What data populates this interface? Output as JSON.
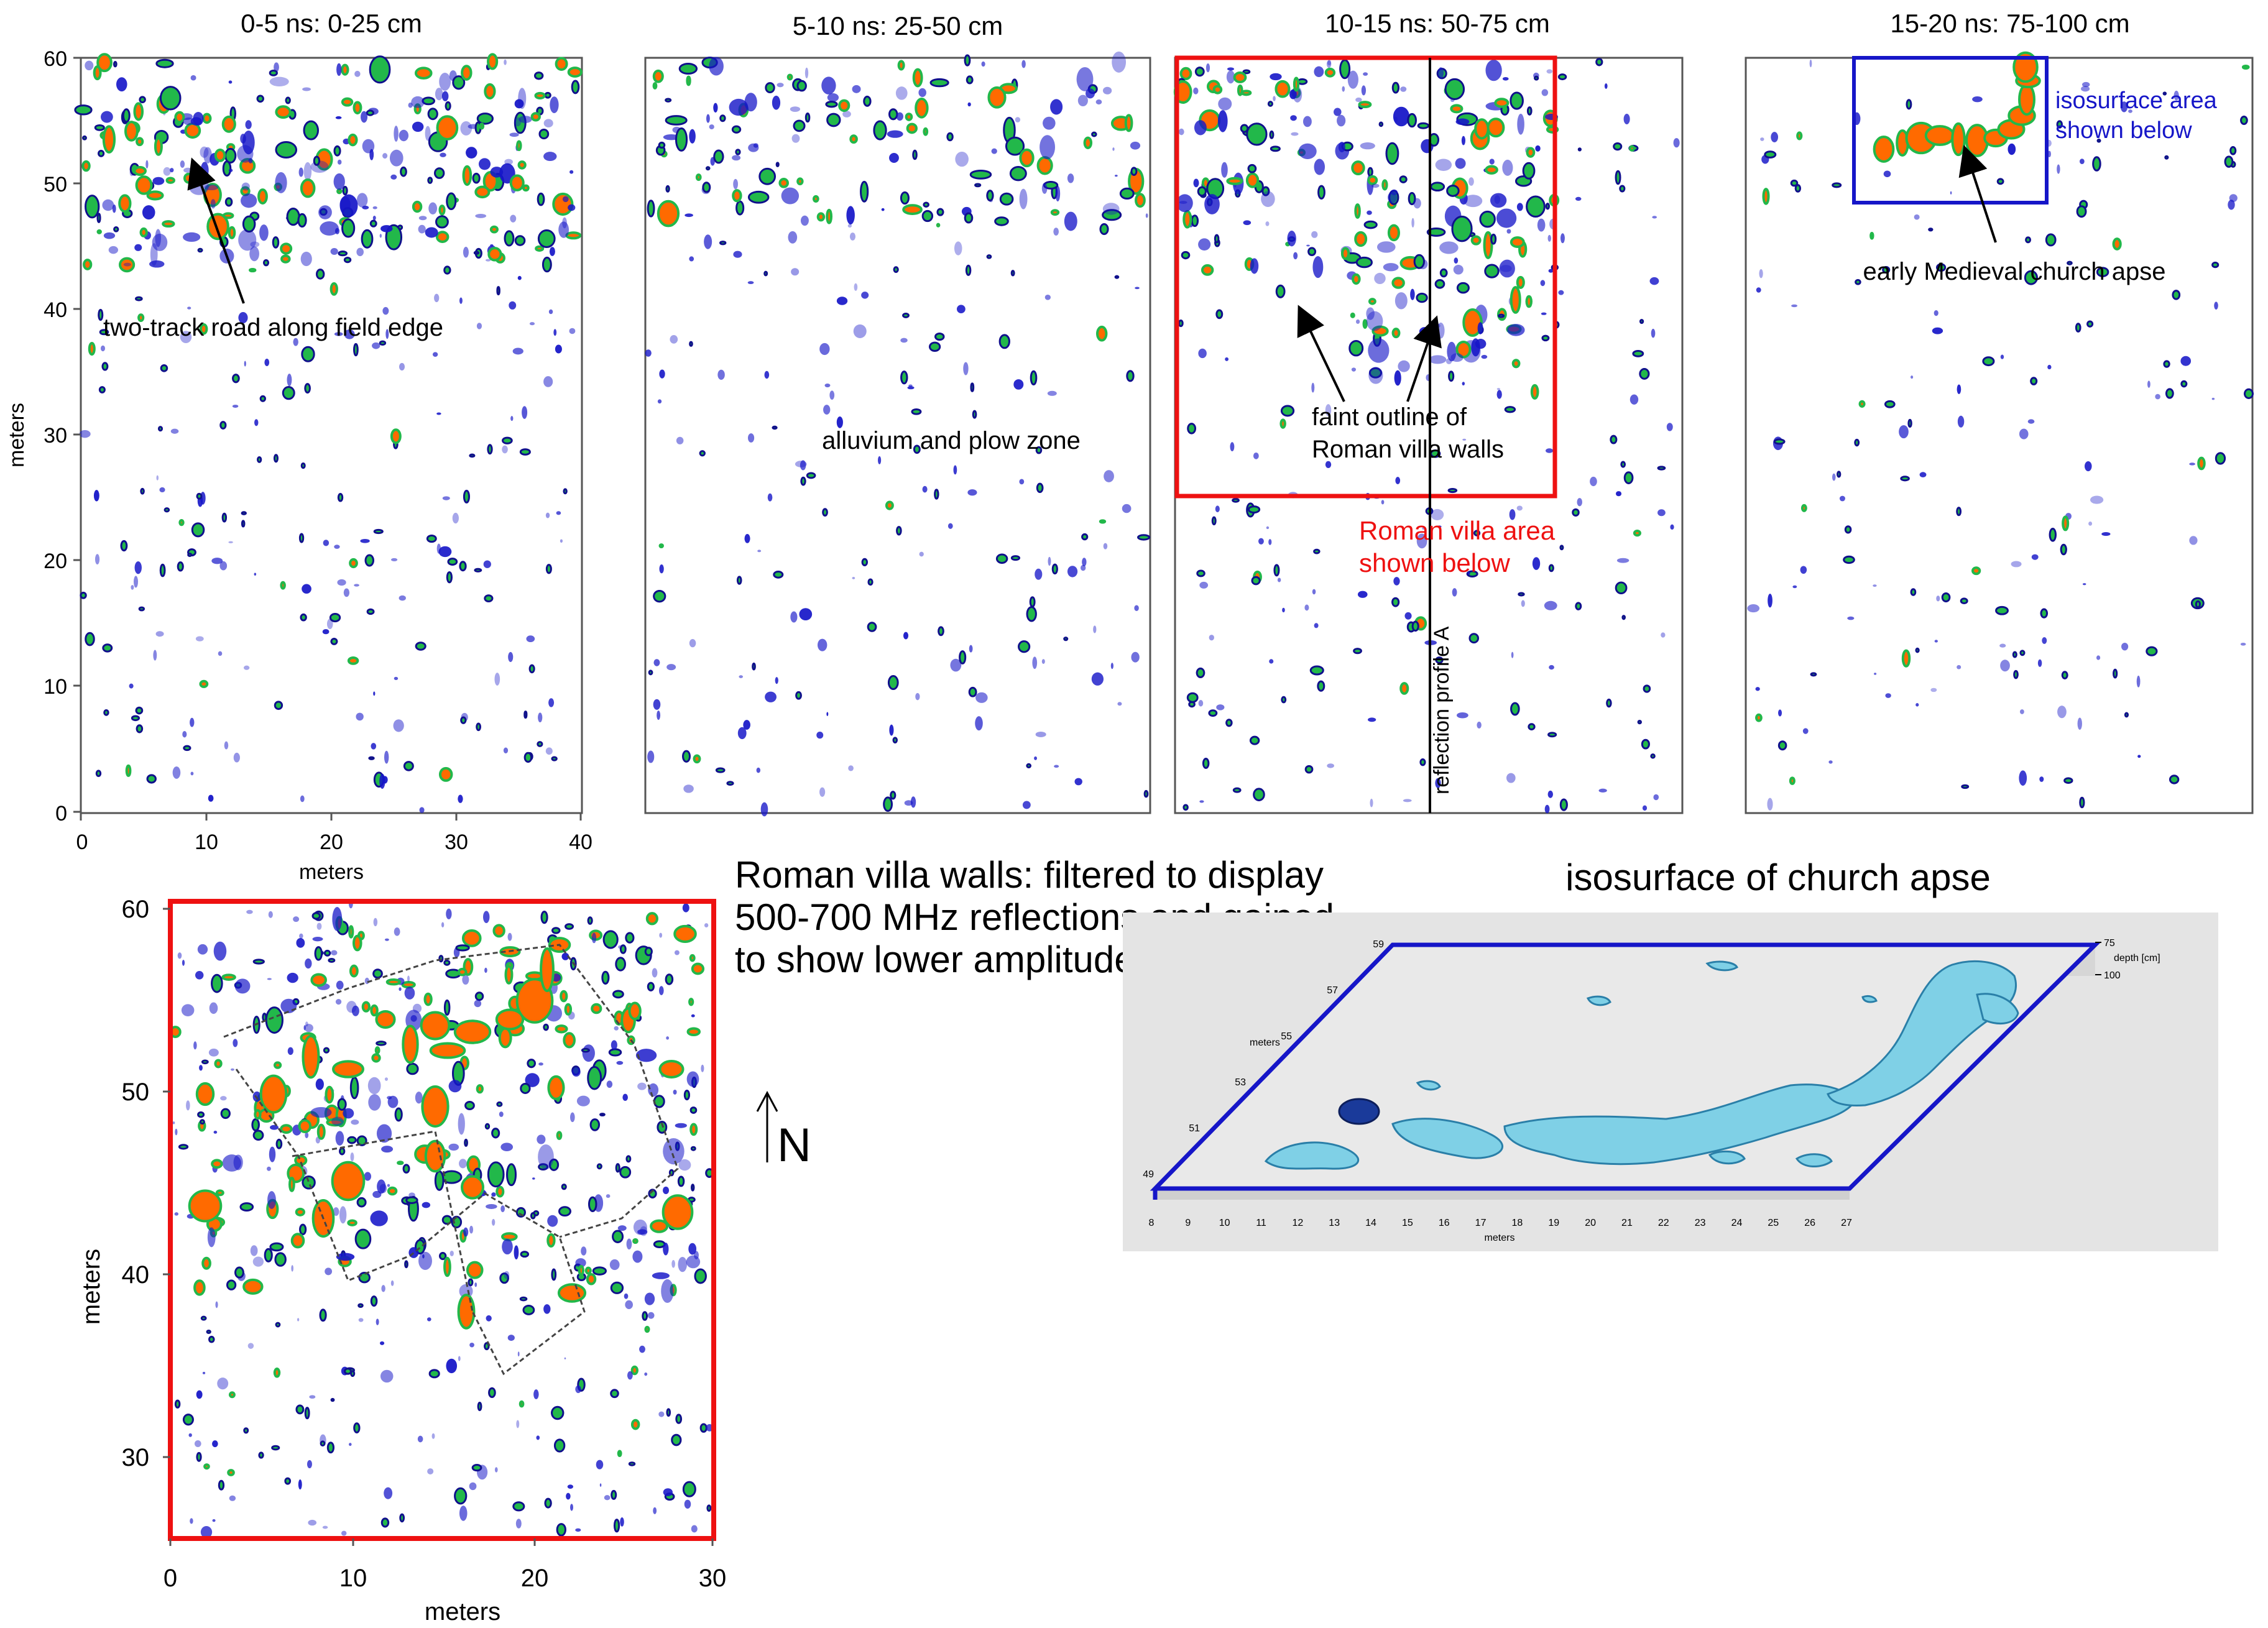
{
  "colors": {
    "red": "#ee1111",
    "blue": "#1616c8",
    "dark_blue": "#10108c",
    "green": "#22b84a",
    "orange": "#ff6a00",
    "surface": "#7fd0e6"
  },
  "slices": [
    {
      "title": "0-5 ns:  0-25 cm"
    },
    {
      "title": "5-10 ns:  25-50 cm"
    },
    {
      "title": "10-15 ns:  50-75 cm"
    },
    {
      "title": "15-20 ns:  75-100 cm"
    }
  ],
  "top_axes": {
    "y_label": "meters",
    "y_ticks": [
      "60",
      "50",
      "40",
      "30",
      "20",
      "10",
      "0"
    ],
    "x_label": "meters",
    "x_ticks": [
      "0",
      "10",
      "20",
      "30",
      "40"
    ]
  },
  "annotations": {
    "road": "two-track road along field edge",
    "alluvium": "alluvium and plow zone",
    "villa_line1": "faint outline of",
    "villa_line2": "Roman villa walls",
    "villa_area_line1": "Roman villa area",
    "villa_area_line2": "shown below",
    "profile": "reflection profile A",
    "apse": "early Medieval church apse",
    "iso_area_line1": "isosurface area",
    "iso_area_line2": "shown below"
  },
  "bottom_left": {
    "y_label": "meters",
    "y_ticks": [
      "60",
      "50",
      "40",
      "30"
    ],
    "x_label": "meters",
    "x_ticks": [
      "0",
      "10",
      "20",
      "30"
    ]
  },
  "caption": {
    "line1": "Roman villa walls: filtered to display",
    "line2": "500-700 MHz reflections and gained",
    "line3": "to show lower amplitudes"
  },
  "north": "N",
  "isosurface": {
    "title": "isosurface of church apse",
    "y_label": "meters",
    "y_ticks": [
      "59",
      "57",
      "55",
      "53",
      "51",
      "49"
    ],
    "x_label": "meters",
    "x_ticks": [
      "8",
      "9",
      "10",
      "11",
      "12",
      "13",
      "14",
      "15",
      "16",
      "17",
      "18",
      "19",
      "20",
      "21",
      "22",
      "23",
      "24",
      "25",
      "26",
      "27"
    ],
    "depth_top": "75",
    "depth_bottom": "100",
    "depth_label": "depth [cm]"
  }
}
